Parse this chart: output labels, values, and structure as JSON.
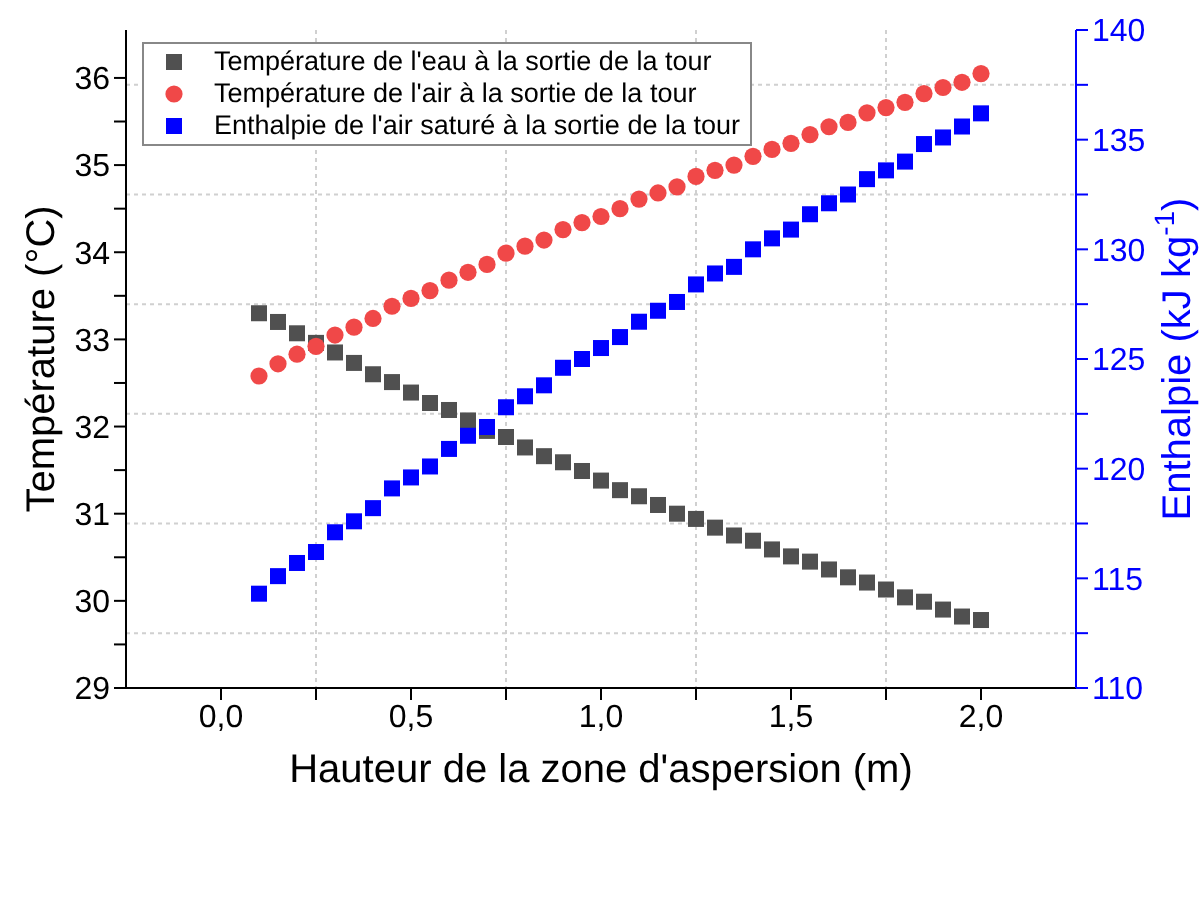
{
  "chart_data": {
    "type": "scatter",
    "xlabel": "Hauteur de la zone d'aspersion (m)",
    "ylabel": "Température (°C)",
    "y2label": "Enthalpie (kJ kg$^{-1}$)",
    "x": [
      0.1,
      0.15,
      0.2,
      0.25,
      0.3,
      0.35,
      0.4,
      0.45,
      0.5,
      0.55,
      0.6,
      0.65,
      0.7,
      0.75,
      0.8,
      0.85,
      0.9,
      0.95,
      1.0,
      1.05,
      1.1,
      1.15,
      1.2,
      1.25,
      1.3,
      1.35,
      1.4,
      1.45,
      1.5,
      1.55,
      1.6,
      1.65,
      1.7,
      1.75,
      1.8,
      1.85,
      1.9,
      1.95,
      2.0
    ],
    "series": [
      {
        "name": "Température de l'eau à la sortie de la tour",
        "color": "#505050",
        "marker": "square",
        "values": [
          33.3,
          33.2,
          33.07,
          32.96,
          32.85,
          32.73,
          32.6,
          32.51,
          32.39,
          32.27,
          32.19,
          32.07,
          31.95,
          31.88,
          31.76,
          31.66,
          31.59,
          31.49,
          31.38,
          31.27,
          31.2,
          31.1,
          31.0,
          30.94,
          30.84,
          30.75,
          30.69,
          30.59,
          30.51,
          30.45,
          30.36,
          30.27,
          30.21,
          30.13,
          30.04,
          29.99,
          29.9,
          29.82,
          29.78
        ]
      },
      {
        "name": "Température de l'air à la sortie de la tour",
        "color": "#f04848",
        "marker": "circle",
        "values": [
          32.58,
          32.72,
          32.83,
          32.92,
          33.05,
          33.14,
          33.24,
          33.38,
          33.47,
          33.56,
          33.68,
          33.77,
          33.86,
          33.99,
          34.07,
          34.14,
          34.26,
          34.34,
          34.41,
          34.5,
          34.61,
          34.68,
          34.75,
          34.87,
          34.94,
          35.0,
          35.1,
          35.18,
          35.25,
          35.35,
          35.44,
          35.49,
          35.6,
          35.66,
          35.72,
          35.82,
          35.89,
          35.95,
          36.05
        ]
      },
      {
        "name": "Enthalpie de l'air saturé à la sortie de la tour",
        "color": "#0000ff",
        "marker": "square",
        "axis": "y2",
        "values": [
          114.3,
          115.1,
          115.7,
          116.2,
          117.1,
          117.6,
          118.2,
          119.1,
          119.6,
          120.1,
          120.9,
          121.5,
          121.9,
          122.8,
          123.3,
          123.8,
          124.6,
          125.0,
          125.5,
          126.0,
          126.7,
          127.2,
          127.6,
          128.4,
          128.9,
          129.2,
          130.0,
          130.5,
          130.9,
          131.6,
          132.1,
          132.5,
          133.2,
          133.6,
          134.0,
          134.8,
          135.1,
          135.6,
          136.2
        ]
      }
    ],
    "xlim": [
      -0.25,
      2.25
    ],
    "xticks": [
      {
        "value": 0,
        "label": "0,0"
      },
      {
        "value": 0.25,
        "label": null
      },
      {
        "value": 0.5,
        "label": "0,5"
      },
      {
        "value": 0.75,
        "label": null
      },
      {
        "value": 1,
        "label": "1,0"
      },
      {
        "value": 1.25,
        "label": null
      },
      {
        "value": 1.5,
        "label": "1,5"
      },
      {
        "value": 1.75,
        "label": null
      },
      {
        "value": 2,
        "label": "2,0"
      }
    ],
    "ylim": [
      29,
      36.55
    ],
    "yticks": [
      29,
      {
        "value": 29.5,
        "label": null
      },
      30,
      {
        "value": 30.5,
        "label": null
      },
      31,
      {
        "value": 31.5,
        "label": null
      },
      32,
      {
        "value": 32.5,
        "label": null
      },
      33,
      {
        "value": 33.5,
        "label": null
      },
      34,
      {
        "value": 34.5,
        "label": null
      },
      35,
      {
        "value": 35.5,
        "label": null
      },
      36
    ],
    "y2lim": [
      110,
      140
    ],
    "y2ticks": [
      110,
      {
        "value": 112.5,
        "label": null
      },
      115,
      {
        "value": 117.5,
        "label": null
      },
      120,
      {
        "value": 122.5,
        "label": null
      },
      125,
      {
        "value": 127.5,
        "label": null
      },
      130,
      {
        "value": 132.5,
        "label": null
      },
      135,
      {
        "value": 137.5,
        "label": null
      },
      140
    ],
    "grid": true,
    "legend": "top left"
  }
}
